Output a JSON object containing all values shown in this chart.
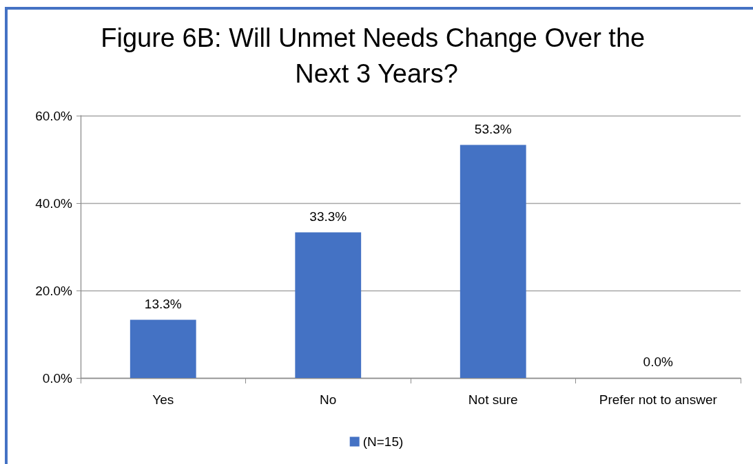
{
  "chart_data": {
    "type": "bar",
    "title": "Figure 6B: Will Unmet Needs Change Over the Next 3 Years?",
    "categories": [
      "Yes",
      "No",
      "Not sure",
      "Prefer not to answer"
    ],
    "series": [
      {
        "name": "(N=15)",
        "color": "#4472c4",
        "values": [
          13.3,
          33.3,
          53.3,
          0
        ],
        "value_labels": [
          "13.3%",
          "33.3%",
          "53.3%",
          "0.0%"
        ]
      }
    ],
    "ylim": [
      0,
      60
    ],
    "yticks": [
      {
        "value": 0,
        "label": "0.0%"
      },
      {
        "value": 20,
        "label": "20.0%"
      },
      {
        "value": 40,
        "label": "40.0%"
      },
      {
        "value": 60,
        "label": "60.0%"
      }
    ],
    "grid": "y",
    "legend": "bottom"
  }
}
